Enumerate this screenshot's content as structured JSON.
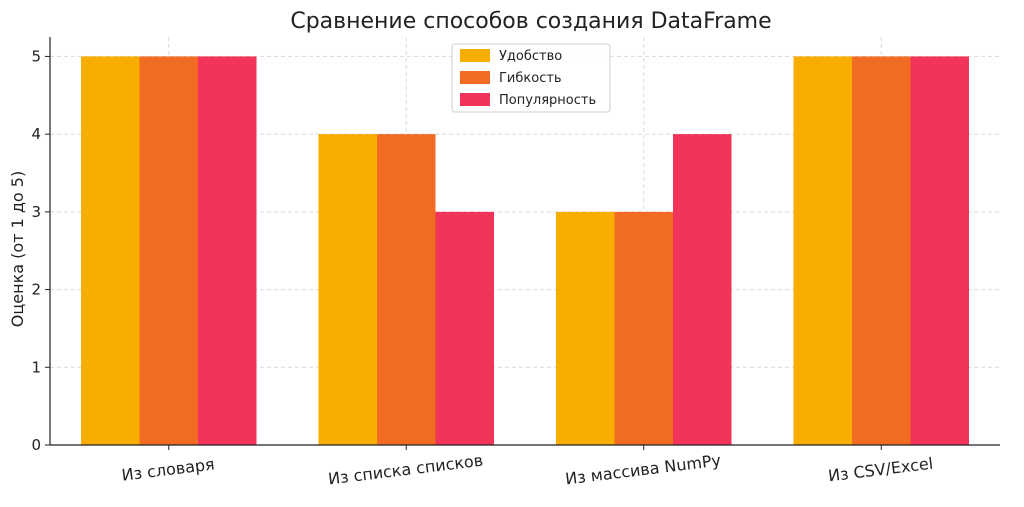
{
  "chart_data": {
    "type": "bar",
    "title": "Сравнение способов создания DataFrame",
    "xlabel": "",
    "ylabel": "Оценка (от 1 до 5)",
    "ylim": [
      0,
      5.25
    ],
    "yticks": [
      0,
      1,
      2,
      3,
      4,
      5
    ],
    "categories": [
      "Из словаря",
      "Из списка списков",
      "Из массива NumPy",
      "Из CSV/Excel"
    ],
    "series": [
      {
        "name": "Удобство",
        "color": "#F9AD00",
        "values": [
          5,
          4,
          3,
          5
        ]
      },
      {
        "name": "Гибкость",
        "color": "#F16C22",
        "values": [
          5,
          4,
          3,
          5
        ]
      },
      {
        "name": "Популярность",
        "color": "#F2335A",
        "values": [
          5,
          3,
          4,
          5
        ]
      }
    ],
    "grid": true,
    "legend_position": "top-center"
  }
}
